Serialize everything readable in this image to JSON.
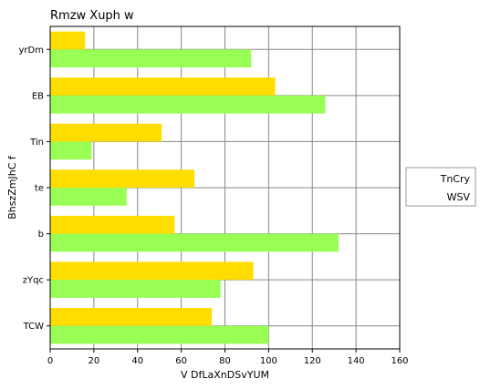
{
  "chart_data": {
    "type": "bar",
    "orientation": "horizontal",
    "title": "Rmzw Xuph w",
    "xlabel": "V DfLaXnDSvYUM",
    "ylabel": "BhszZmJhC f",
    "xlim": [
      0,
      160
    ],
    "xticks": [
      0,
      20,
      40,
      60,
      80,
      100,
      120,
      140,
      160
    ],
    "grid": true,
    "legend_position": "right",
    "categories": [
      "yrDm",
      "EB",
      "Tin",
      "te",
      "b",
      "zYqc",
      "TCW"
    ],
    "series": [
      {
        "name": "TnCry",
        "color": "#ffdd00",
        "values": [
          16,
          103,
          51,
          66,
          57,
          93,
          74
        ]
      },
      {
        "name": "WSV",
        "color": "#99ff55",
        "values": [
          92,
          126,
          19,
          35,
          132,
          78,
          100
        ]
      }
    ]
  }
}
